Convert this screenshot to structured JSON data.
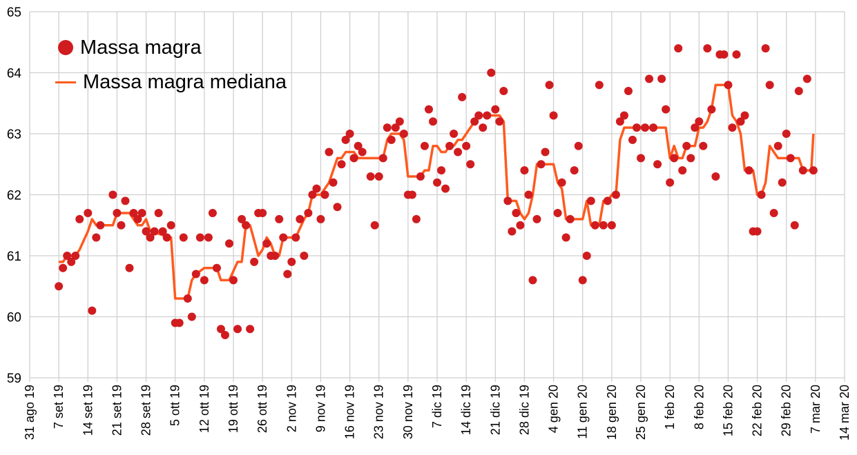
{
  "chart_data": {
    "type": "scatter",
    "title": "",
    "xlabel": "",
    "ylabel": "",
    "ylim": [
      59,
      65
    ],
    "yticks": [
      "59",
      "60",
      "61",
      "62",
      "63",
      "64",
      "65"
    ],
    "x_unit": "days since 31 ago 19",
    "xlim": [
      0,
      196
    ],
    "xtick_labels": [
      "31 ago 19",
      "7 set 19",
      "14 set 19",
      "21 set 19",
      "28 set 19",
      "5 ott 19",
      "12 ott 19",
      "19 ott 19",
      "26 ott 19",
      "2 nov 19",
      "9 nov 19",
      "16 nov 19",
      "23 nov 19",
      "30 nov 19",
      "7 dic 19",
      "14 dic 19",
      "21 dic 19",
      "28 dic 19",
      "4 gen 20",
      "11 gen 20",
      "18 gen 20",
      "25 gen 20",
      "1 feb 20",
      "8 feb 20",
      "15 feb 20",
      "22 feb 20",
      "29 feb 20",
      "7 mar 20",
      "14 mar 20"
    ],
    "grid": true,
    "legend_position": "top-left",
    "series": [
      {
        "name": "Massa magra",
        "kind": "scatter",
        "color": "#d01c1f",
        "points": [
          [
            7,
            60.5
          ],
          [
            8,
            60.8
          ],
          [
            9,
            61.0
          ],
          [
            10,
            60.9
          ],
          [
            11,
            61.0
          ],
          [
            12,
            61.6
          ],
          [
            14,
            61.7
          ],
          [
            15,
            60.1
          ],
          [
            16,
            61.3
          ],
          [
            17,
            61.5
          ],
          [
            20,
            62.0
          ],
          [
            21,
            61.7
          ],
          [
            22,
            61.5
          ],
          [
            23,
            61.9
          ],
          [
            24,
            60.8
          ],
          [
            25,
            61.7
          ],
          [
            26,
            61.6
          ],
          [
            27,
            61.7
          ],
          [
            28,
            61.4
          ],
          [
            29,
            61.3
          ],
          [
            30,
            61.4
          ],
          [
            31,
            61.7
          ],
          [
            32,
            61.4
          ],
          [
            33,
            61.3
          ],
          [
            34,
            61.5
          ],
          [
            35,
            59.9
          ],
          [
            36,
            59.9
          ],
          [
            37,
            61.3
          ],
          [
            38,
            60.3
          ],
          [
            39,
            60.0
          ],
          [
            40,
            60.7
          ],
          [
            41,
            61.3
          ],
          [
            42,
            60.6
          ],
          [
            43,
            61.3
          ],
          [
            44,
            61.7
          ],
          [
            45,
            60.8
          ],
          [
            46,
            59.8
          ],
          [
            47,
            59.7
          ],
          [
            48,
            61.2
          ],
          [
            49,
            60.6
          ],
          [
            50,
            59.8
          ],
          [
            51,
            61.6
          ],
          [
            52,
            61.5
          ],
          [
            53,
            59.8
          ],
          [
            54,
            60.9
          ],
          [
            55,
            61.7
          ],
          [
            56,
            61.7
          ],
          [
            57,
            61.2
          ],
          [
            58,
            61.0
          ],
          [
            59,
            61.0
          ],
          [
            60,
            61.6
          ],
          [
            61,
            61.3
          ],
          [
            62,
            60.7
          ],
          [
            63,
            60.9
          ],
          [
            64,
            61.3
          ],
          [
            65,
            61.6
          ],
          [
            66,
            61.0
          ],
          [
            67,
            61.7
          ],
          [
            68,
            62.0
          ],
          [
            69,
            62.1
          ],
          [
            70,
            61.6
          ],
          [
            71,
            62.0
          ],
          [
            72,
            62.7
          ],
          [
            73,
            62.2
          ],
          [
            74,
            61.8
          ],
          [
            75,
            62.5
          ],
          [
            76,
            62.9
          ],
          [
            77,
            63.0
          ],
          [
            78,
            62.6
          ],
          [
            79,
            62.8
          ],
          [
            80,
            62.7
          ],
          [
            82,
            62.3
          ],
          [
            83,
            61.5
          ],
          [
            84,
            62.3
          ],
          [
            85,
            62.6
          ],
          [
            86,
            63.1
          ],
          [
            87,
            62.9
          ],
          [
            88,
            63.1
          ],
          [
            89,
            63.2
          ],
          [
            90,
            63.0
          ],
          [
            91,
            62.0
          ],
          [
            92,
            62.0
          ],
          [
            93,
            61.6
          ],
          [
            94,
            62.3
          ],
          [
            95,
            62.8
          ],
          [
            96,
            63.4
          ],
          [
            97,
            63.2
          ],
          [
            98,
            62.2
          ],
          [
            99,
            62.4
          ],
          [
            100,
            62.1
          ],
          [
            101,
            62.8
          ],
          [
            102,
            63.0
          ],
          [
            103,
            62.7
          ],
          [
            104,
            63.6
          ],
          [
            105,
            62.8
          ],
          [
            106,
            62.5
          ],
          [
            107,
            63.2
          ],
          [
            108,
            63.3
          ],
          [
            109,
            63.1
          ],
          [
            110,
            63.3
          ],
          [
            111,
            64.0
          ],
          [
            112,
            63.4
          ],
          [
            113,
            63.2
          ],
          [
            114,
            63.7
          ],
          [
            115,
            61.9
          ],
          [
            116,
            61.4
          ],
          [
            117,
            61.7
          ],
          [
            118,
            61.5
          ],
          [
            119,
            62.4
          ],
          [
            120,
            62.0
          ],
          [
            121,
            60.6
          ],
          [
            122,
            61.6
          ],
          [
            123,
            62.5
          ],
          [
            124,
            62.7
          ],
          [
            125,
            63.8
          ],
          [
            126,
            63.3
          ],
          [
            127,
            61.7
          ],
          [
            128,
            62.2
          ],
          [
            129,
            61.3
          ],
          [
            130,
            61.6
          ],
          [
            131,
            62.4
          ],
          [
            132,
            62.8
          ],
          [
            133,
            60.6
          ],
          [
            134,
            61.0
          ],
          [
            135,
            61.9
          ],
          [
            136,
            61.5
          ],
          [
            137,
            63.8
          ],
          [
            138,
            61.5
          ],
          [
            139,
            61.9
          ],
          [
            140,
            61.5
          ],
          [
            141,
            62.0
          ],
          [
            142,
            63.2
          ],
          [
            143,
            63.3
          ],
          [
            144,
            63.7
          ],
          [
            145,
            62.9
          ],
          [
            146,
            63.1
          ],
          [
            147,
            62.6
          ],
          [
            148,
            63.1
          ],
          [
            149,
            63.9
          ],
          [
            150,
            63.1
          ],
          [
            151,
            62.5
          ],
          [
            152,
            63.9
          ],
          [
            153,
            63.4
          ],
          [
            154,
            62.2
          ],
          [
            155,
            62.6
          ],
          [
            156,
            64.4
          ],
          [
            157,
            62.4
          ],
          [
            158,
            62.8
          ],
          [
            159,
            62.6
          ],
          [
            160,
            63.1
          ],
          [
            161,
            63.2
          ],
          [
            162,
            62.8
          ],
          [
            163,
            64.4
          ],
          [
            164,
            63.4
          ],
          [
            165,
            62.3
          ],
          [
            166,
            64.3
          ],
          [
            167,
            64.3
          ],
          [
            168,
            63.8
          ],
          [
            169,
            63.1
          ],
          [
            170,
            64.3
          ],
          [
            171,
            63.2
          ],
          [
            172,
            63.3
          ],
          [
            173,
            62.4
          ],
          [
            174,
            61.4
          ],
          [
            175,
            61.4
          ],
          [
            176,
            62.0
          ],
          [
            177,
            64.4
          ],
          [
            178,
            63.8
          ],
          [
            179,
            61.7
          ],
          [
            180,
            62.8
          ],
          [
            181,
            62.2
          ],
          [
            182,
            63.0
          ],
          [
            183,
            62.6
          ],
          [
            184,
            61.5
          ],
          [
            185,
            63.7
          ],
          [
            186,
            62.4
          ],
          [
            187,
            63.9
          ],
          [
            188.5,
            62.4
          ]
        ]
      },
      {
        "name": "Massa magra mediana",
        "kind": "line",
        "color": "#ff5a1f",
        "points": [
          [
            7,
            60.9
          ],
          [
            8,
            60.9
          ],
          [
            9,
            61.0
          ],
          [
            11,
            61.0
          ],
          [
            12,
            61.1
          ],
          [
            14,
            61.4
          ],
          [
            15,
            61.6
          ],
          [
            16,
            61.5
          ],
          [
            20,
            61.5
          ],
          [
            21,
            61.7
          ],
          [
            24,
            61.7
          ],
          [
            25,
            61.6
          ],
          [
            26,
            61.5
          ],
          [
            27,
            61.5
          ],
          [
            28,
            61.6
          ],
          [
            29,
            61.4
          ],
          [
            34,
            61.3
          ],
          [
            35,
            60.3
          ],
          [
            38,
            60.3
          ],
          [
            39,
            60.6
          ],
          [
            40,
            60.7
          ],
          [
            42,
            60.8
          ],
          [
            45,
            60.8
          ],
          [
            46,
            60.6
          ],
          [
            48,
            60.6
          ],
          [
            50,
            60.9
          ],
          [
            51,
            60.9
          ],
          [
            52,
            61.5
          ],
          [
            53,
            61.5
          ],
          [
            55,
            61.0
          ],
          [
            56,
            61.1
          ],
          [
            57,
            61.3
          ],
          [
            58,
            61.2
          ],
          [
            59,
            61.0
          ],
          [
            60,
            61.0
          ],
          [
            61,
            61.3
          ],
          [
            64,
            61.3
          ],
          [
            66,
            61.6
          ],
          [
            67,
            61.7
          ],
          [
            68,
            62.0
          ],
          [
            70,
            62.0
          ],
          [
            71,
            62.1
          ],
          [
            72,
            62.2
          ],
          [
            73,
            62.4
          ],
          [
            74,
            62.6
          ],
          [
            75,
            62.6
          ],
          [
            76,
            62.7
          ],
          [
            78,
            62.7
          ],
          [
            79,
            62.6
          ],
          [
            85,
            62.6
          ],
          [
            86,
            62.9
          ],
          [
            87,
            63.0
          ],
          [
            89,
            63.0
          ],
          [
            90,
            62.9
          ],
          [
            91,
            62.3
          ],
          [
            94,
            62.3
          ],
          [
            95,
            62.4
          ],
          [
            96,
            62.4
          ],
          [
            97,
            62.8
          ],
          [
            98,
            62.8
          ],
          [
            99,
            62.7
          ],
          [
            100,
            62.7
          ],
          [
            101,
            62.8
          ],
          [
            102,
            62.8
          ],
          [
            103,
            62.9
          ],
          [
            104,
            62.9
          ],
          [
            105,
            63.0
          ],
          [
            106,
            63.1
          ],
          [
            107,
            63.2
          ],
          [
            108,
            63.3
          ],
          [
            113,
            63.3
          ],
          [
            114,
            63.2
          ],
          [
            115,
            61.9
          ],
          [
            117,
            61.9
          ],
          [
            118,
            61.7
          ],
          [
            119,
            61.6
          ],
          [
            120,
            61.7
          ],
          [
            121,
            62.0
          ],
          [
            122,
            62.5
          ],
          [
            126,
            62.5
          ],
          [
            127,
            62.2
          ],
          [
            128,
            62.1
          ],
          [
            129,
            61.6
          ],
          [
            133,
            61.6
          ],
          [
            134,
            61.9
          ],
          [
            135,
            61.5
          ],
          [
            137,
            61.5
          ],
          [
            138,
            61.9
          ],
          [
            139,
            61.9
          ],
          [
            140,
            62.0
          ],
          [
            141,
            62.0
          ],
          [
            142,
            62.9
          ],
          [
            143,
            63.1
          ],
          [
            153,
            63.1
          ],
          [
            154,
            62.6
          ],
          [
            155,
            62.8
          ],
          [
            156,
            62.6
          ],
          [
            157,
            62.6
          ],
          [
            158,
            62.8
          ],
          [
            160,
            62.8
          ],
          [
            161,
            63.1
          ],
          [
            162,
            63.1
          ],
          [
            163,
            63.2
          ],
          [
            164,
            63.4
          ],
          [
            165,
            63.8
          ],
          [
            168,
            63.8
          ],
          [
            169,
            63.3
          ],
          [
            170,
            63.2
          ],
          [
            171,
            63.0
          ],
          [
            172,
            62.4
          ],
          [
            174,
            62.4
          ],
          [
            175,
            62.0
          ],
          [
            176,
            62.0
          ],
          [
            177,
            62.2
          ],
          [
            178,
            62.8
          ],
          [
            179,
            62.7
          ],
          [
            180,
            62.6
          ],
          [
            185,
            62.6
          ],
          [
            186,
            62.4
          ],
          [
            188,
            62.4
          ],
          [
            188.5,
            63.0
          ]
        ]
      }
    ]
  }
}
